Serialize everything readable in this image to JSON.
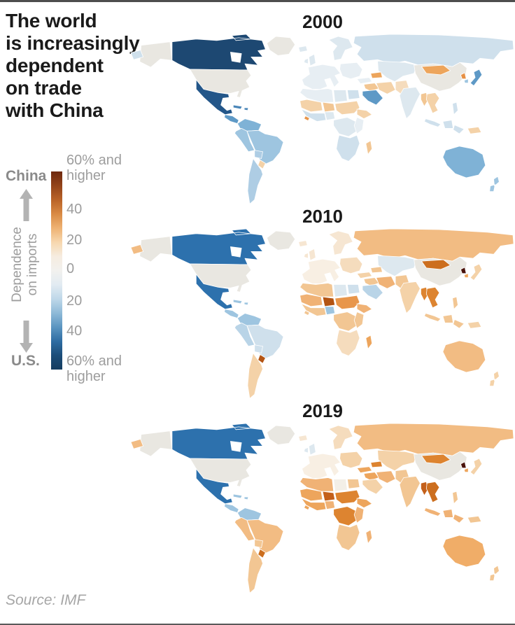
{
  "page": {
    "title": "The world\nis increasingly\ndependent\non trade\nwith China",
    "source": "Source: IMF"
  },
  "legend": {
    "top_entity": "China",
    "bottom_entity": "U.S.",
    "axis_label": "Dependence\non imports",
    "ticks": [
      "60% and\nhigher",
      "40",
      "20",
      "0",
      "20",
      "40",
      "60% and\nhigher"
    ],
    "gradient_stops": [
      "#6e290e",
      "#93441a",
      "#b96328",
      "#d98a44",
      "#eeb273",
      "#f7d7ae",
      "#f6ece0",
      "#f2f1ee",
      "#e2ebf2",
      "#bfd8e9",
      "#8fbad8",
      "#5b95c1",
      "#2f6da3",
      "#1c4d79",
      "#153d60"
    ]
  },
  "colors": {
    "no_data": "#e9e7e1",
    "water": "#ffffff",
    "border": "#ffffff"
  },
  "maps": [
    {
      "year": "2000",
      "region_colors": {
        "russia_east_tip": "#cfe0ec",
        "canada": "#1d4872",
        "mexico": "#235689",
        "caribbean": "#4a86b8",
        "central_america": "#5e99c6",
        "colombia_venezuela": "#7fb2d6",
        "peru_ecuador": "#9ec5e0",
        "brazil": "#9ec5e0",
        "bolivia": "#aecde4",
        "paraguay": "#f4d2a8",
        "argentina_chile": "#aecde4",
        "iceland": "#dde8ef",
        "uk_ireland": "#dde8ef",
        "west_europe": "#e7eef3",
        "scandinavia": "#dde8ef",
        "east_europe": "#e7eef3",
        "russia": "#cfe0ec",
        "kazakhstan_centralasia": "#dde8ef",
        "caucasus": "#eda55c",
        "turkey": "#e7eef3",
        "middle_east": "#f2c693",
        "saudi_arabia": "#5e99c6",
        "iran": "#f4d2a8",
        "afghanistan_pak": "#f5dcbd",
        "india": "#dde8ef",
        "mongolia": "#eda55c",
        "north_korea": "#e69045",
        "south_korea": "#9ec5e0",
        "japan": "#5e99c6",
        "myanmar": "#f2c693",
        "seasia": "#f4d2a8",
        "malaysia_indonesia": "#cfe0ec",
        "philippines": "#cfe0ec",
        "papua": "#f4d2a8",
        "australia": "#7fb2d6",
        "new_zealand": "#9ec5e0",
        "north_africa": "#e7eef3",
        "libya": "#dde8ef",
        "egypt": "#cfe0ec",
        "mauritania_mali": "#f4d2a8",
        "niger": "#f2c693",
        "chad_sudan": "#f4d2a8",
        "nigeria": "#dde8ef",
        "west_africa_coast": "#cfe0ec",
        "liberia": "#e8964b",
        "horn_ethiopia": "#f4d2a8",
        "central_africa": "#dde8ef",
        "east_africa": "#e7eef3",
        "southern_africa": "#cfe0ec",
        "madagascar": "#f2c693"
      }
    },
    {
      "year": "2010",
      "region_colors": {
        "russia_east_tip": "#f2bc83",
        "canada": "#2d71ad",
        "mexico": "#2d71ad",
        "caribbean": "#9ec5e0",
        "central_america": "#9ec5e0",
        "colombia_venezuela": "#9ec5e0",
        "peru_ecuador": "#b9d4e7",
        "brazil": "#cfe0ec",
        "bolivia": "#cfe0ec",
        "paraguay": "#b35413",
        "argentina_chile": "#f4d2a8",
        "iceland": "#f6e6d2",
        "uk_ireland": "#f6e6d2",
        "west_europe": "#f8efe3",
        "scandinavia": "#f6e6d2",
        "east_europe": "#f5dcbd",
        "russia": "#f2bc83",
        "kazakhstan_centralasia": "#dde8ef",
        "caucasus": "#f2c693",
        "turkey": "#f4d2a8",
        "middle_east": "#f2c693",
        "saudi_arabia": "#b9d4e7",
        "iran": "#f0b275",
        "afghanistan_pak": "#f2c693",
        "india": "#f4d2a8",
        "mongolia": "#cc6e1e",
        "north_korea": "#49120b",
        "south_korea": "#eda55c",
        "japan": "#f4d2a8",
        "myanmar": "#dd8430",
        "seasia": "#dd8430",
        "malaysia_indonesia": "#f2c693",
        "philippines": "#f2c693",
        "papua": "#f4d2a8",
        "australia": "#f2bc83",
        "new_zealand": "#f4d2a8",
        "north_africa": "#f2c693",
        "libya": "#dde8ef",
        "egypt": "#cfe0ec",
        "mauritania_mali": "#f0b275",
        "niger": "#b35413",
        "chad_sudan": "#e8964b",
        "nigeria": "#9ec5e0",
        "west_africa_coast": "#f2c693",
        "liberia": "#f2c693",
        "horn_ethiopia": "#f0b275",
        "central_africa": "#f2c693",
        "east_africa": "#f2c693",
        "southern_africa": "#f5dcbd",
        "madagascar": "#eda55c"
      }
    },
    {
      "year": "2019",
      "region_colors": {
        "russia_east_tip": "#f2bc83",
        "canada": "#2d71ad",
        "mexico": "#2d71ad",
        "caribbean": "#9ec5e0",
        "central_america": "#9ec5e0",
        "colombia_venezuela": "#9ec5e0",
        "peru_ecuador": "#f2bc83",
        "brazil": "#f2bc83",
        "bolivia": "#f2c693",
        "paraguay": "#cc6e1e",
        "argentina_chile": "#f2c693",
        "iceland": "#f6e6d2",
        "uk_ireland": "#dde8ef",
        "west_europe": "#f8efe3",
        "scandinavia": "#f5dcbd",
        "east_europe": "#f4d2a8",
        "russia": "#f2bc83",
        "kazakhstan_centralasia": "#f4d2a8",
        "caucasus": "#dd8430",
        "turkey": "#eda55c",
        "middle_east": "#eda55c",
        "saudi_arabia": "#f4d2a8",
        "iran": "#f0b275",
        "afghanistan_pak": "#f2c693",
        "india": "#f2c693",
        "mongolia": "#dd8430",
        "north_korea": "#49120b",
        "south_korea": "#eda55c",
        "japan": "#f4d2a8",
        "myanmar": "#c4601a",
        "seasia": "#cc6e1e",
        "malaysia_indonesia": "#f0b275",
        "philippines": "#f2c693",
        "papua": "#f2c693",
        "australia": "#f0ad68",
        "new_zealand": "#f2c693",
        "north_africa": "#f0b275",
        "libya": "#f3efe7",
        "egypt": "#f2c693",
        "mauritania_mali": "#eda55c",
        "niger": "#c4601a",
        "chad_sudan": "#dd8430",
        "nigeria": "#f0b275",
        "west_africa_coast": "#eda55c",
        "liberia": "#eda55c",
        "horn_ethiopia": "#eda55c",
        "central_africa": "#dd8430",
        "east_africa": "#f0b275",
        "southern_africa": "#f2c693",
        "madagascar": "#f0b275"
      }
    }
  ],
  "chart_data": {
    "type": "choropleth",
    "title": "The world is increasingly dependent on trade with China",
    "source": "Source: IMF",
    "years": [
      "2000",
      "2010",
      "2019"
    ],
    "legend": {
      "axis_label": "Dependence on imports",
      "top_entity": "China",
      "bottom_entity": "U.S.",
      "ticks": [
        "60% and higher",
        "40",
        "20",
        "0",
        "20",
        "40",
        "60% and higher"
      ],
      "scale": "diverging orange (China) to blue (U.S.)"
    },
    "value_convention": "Estimated net dependence on imports in percentage points per year [2000, 2010, 2019]; positive = more dependent on China (orange), negative = more dependent on U.S. (blue), null = no data / reporter country",
    "regions": [
      {
        "name": "Canada",
        "values": [
          -65,
          -45,
          -45
        ]
      },
      {
        "name": "United States",
        "values": [
          null,
          null,
          null
        ]
      },
      {
        "name": "Greenland",
        "values": [
          null,
          null,
          null
        ]
      },
      {
        "name": "Mexico",
        "values": [
          -60,
          -45,
          -45
        ]
      },
      {
        "name": "Caribbean",
        "values": [
          -40,
          -20,
          -20
        ]
      },
      {
        "name": "Central America",
        "values": [
          -35,
          -20,
          -20
        ]
      },
      {
        "name": "Colombia/Venezuela",
        "values": [
          -30,
          -20,
          -20
        ]
      },
      {
        "name": "Peru/Ecuador",
        "values": [
          -25,
          -12,
          22
        ]
      },
      {
        "name": "Brazil",
        "values": [
          -22,
          -12,
          22
        ]
      },
      {
        "name": "Bolivia",
        "values": [
          -20,
          -12,
          15
        ]
      },
      {
        "name": "Paraguay",
        "values": [
          8,
          45,
          40
        ]
      },
      {
        "name": "Argentina/Chile",
        "values": [
          -18,
          10,
          15
        ]
      },
      {
        "name": "Western Europe",
        "values": [
          -8,
          4,
          6
        ]
      },
      {
        "name": "United Kingdom/Ireland",
        "values": [
          -12,
          5,
          -5
        ]
      },
      {
        "name": "Scandinavia",
        "values": [
          -10,
          7,
          12
        ]
      },
      {
        "name": "Eastern Europe",
        "values": [
          -5,
          10,
          15
        ]
      },
      {
        "name": "Russia",
        "values": [
          -12,
          25,
          28
        ]
      },
      {
        "name": "Kazakhstan/Central Asia",
        "values": [
          -10,
          -5,
          15
        ]
      },
      {
        "name": "Caucasus/Turkmenistan",
        "values": [
          18,
          12,
          30
        ]
      },
      {
        "name": "Turkey",
        "values": [
          -5,
          13,
          25
        ]
      },
      {
        "name": "Middle East",
        "values": [
          10,
          15,
          25
        ]
      },
      {
        "name": "Saudi Arabia",
        "values": [
          -30,
          -12,
          15
        ]
      },
      {
        "name": "Iran",
        "values": [
          12,
          20,
          25
        ]
      },
      {
        "name": "Afghanistan/Pakistan",
        "values": [
          8,
          15,
          18
        ]
      },
      {
        "name": "India",
        "values": [
          -8,
          13,
          18
        ]
      },
      {
        "name": "China",
        "values": [
          null,
          null,
          null
        ]
      },
      {
        "name": "Mongolia",
        "values": [
          25,
          50,
          42
        ]
      },
      {
        "name": "North Korea",
        "values": [
          30,
          75,
          78
        ]
      },
      {
        "name": "South Korea",
        "values": [
          -20,
          25,
          25
        ]
      },
      {
        "name": "Japan",
        "values": [
          -30,
          13,
          13
        ]
      },
      {
        "name": "Myanmar",
        "values": [
          15,
          35,
          48
        ]
      },
      {
        "name": "Southeast Asia",
        "values": [
          12,
          35,
          45
        ]
      },
      {
        "name": "Indonesia/Malaysia",
        "values": [
          -12,
          15,
          28
        ]
      },
      {
        "name": "Philippines",
        "values": [
          -12,
          15,
          18
        ]
      },
      {
        "name": "Papua New Guinea",
        "values": [
          12,
          13,
          18
        ]
      },
      {
        "name": "Australia",
        "values": [
          -28,
          22,
          32
        ]
      },
      {
        "name": "New Zealand",
        "values": [
          -20,
          13,
          18
        ]
      },
      {
        "name": "North Africa",
        "values": [
          -5,
          15,
          28
        ]
      },
      {
        "name": "Libya",
        "values": [
          -10,
          -10,
          -2
        ]
      },
      {
        "name": "Egypt",
        "values": [
          -12,
          -12,
          18
        ]
      },
      {
        "name": "Mauritania/Mali",
        "values": [
          12,
          28,
          25
        ]
      },
      {
        "name": "Niger",
        "values": [
          15,
          52,
          48
        ]
      },
      {
        "name": "Chad/Sudan",
        "values": [
          12,
          30,
          38
        ]
      },
      {
        "name": "Nigeria",
        "values": [
          -10,
          -18,
          28
        ]
      },
      {
        "name": "West African coast",
        "values": [
          -12,
          15,
          25
        ]
      },
      {
        "name": "Liberia",
        "values": [
          30,
          15,
          25
        ]
      },
      {
        "name": "Horn of Africa",
        "values": [
          12,
          28,
          25
        ]
      },
      {
        "name": "Central Africa",
        "values": [
          -10,
          15,
          38
        ]
      },
      {
        "name": "East Africa",
        "values": [
          -5,
          15,
          28
        ]
      },
      {
        "name": "Southern Africa",
        "values": [
          -12,
          10,
          18
        ]
      },
      {
        "name": "Madagascar",
        "values": [
          15,
          25,
          28
        ]
      }
    ]
  }
}
